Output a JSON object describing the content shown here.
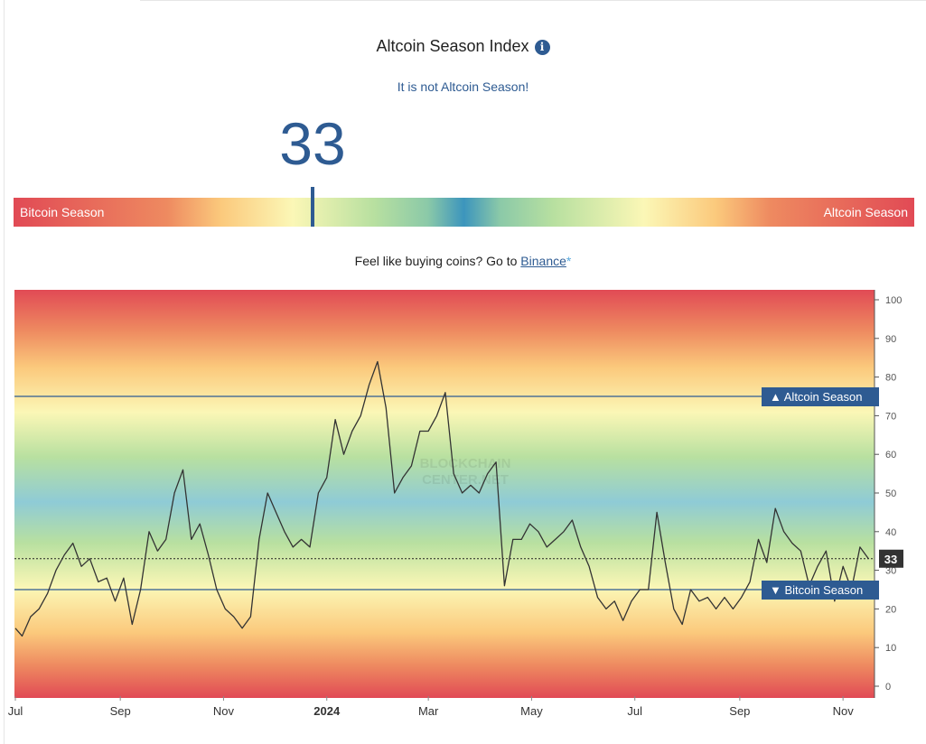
{
  "header": {
    "title": "Altcoin Season Index",
    "info_icon": "info-icon",
    "subtitle": "It is not Altcoin Season!",
    "value": "33"
  },
  "gauge": {
    "left_label": "Bitcoin Season",
    "right_label": "Altcoin Season",
    "value": 33
  },
  "promo": {
    "text": "Feel like buying coins? Go to ",
    "link": "Binance",
    "star": "*"
  },
  "colors": {
    "accent": "#2e5b92",
    "line": "#333333",
    "red": "#e14a55",
    "yellow": "#fbf7b6",
    "blue": "#3c95bd"
  },
  "chart_data": {
    "type": "line",
    "title": "",
    "xlabel": "",
    "ylabel": "",
    "ylim": [
      0,
      100
    ],
    "y_ticks": [
      0,
      10,
      20,
      30,
      40,
      50,
      60,
      70,
      80,
      90,
      100
    ],
    "x_domain": [
      "2023-07-01",
      "2024-11-18"
    ],
    "x_ticks": [
      {
        "date": "2023-07-01",
        "label": "Jul"
      },
      {
        "date": "2023-09-01",
        "label": "Sep"
      },
      {
        "date": "2023-11-01",
        "label": "Nov"
      },
      {
        "date": "2024-01-01",
        "label": "2024"
      },
      {
        "date": "2024-03-01",
        "label": "Mar"
      },
      {
        "date": "2024-05-01",
        "label": "May"
      },
      {
        "date": "2024-07-01",
        "label": "Jul"
      },
      {
        "date": "2024-09-01",
        "label": "Sep"
      },
      {
        "date": "2024-11-01",
        "label": "Nov"
      }
    ],
    "thresholds": [
      {
        "label": "Altcoin Season",
        "value": 75,
        "marker": "▲"
      },
      {
        "label": "Bitcoin Season",
        "value": 25,
        "marker": "▼"
      }
    ],
    "current": {
      "value": 33,
      "label": "33"
    },
    "watermark": "BLOCKCHAIN CENTER.NET",
    "grid": false,
    "legend": "none",
    "series": [
      {
        "x": [
          "2023-07-01",
          "2023-07-05",
          "2023-07-10",
          "2023-07-15",
          "2023-07-20",
          "2023-07-25",
          "2023-07-30",
          "2023-08-04",
          "2023-08-09",
          "2023-08-14",
          "2023-08-19",
          "2023-08-24",
          "2023-08-29",
          "2023-09-03",
          "2023-09-08",
          "2023-09-13",
          "2023-09-18",
          "2023-09-23",
          "2023-09-28",
          "2023-10-03",
          "2023-10-08",
          "2023-10-13",
          "2023-10-18",
          "2023-10-23",
          "2023-10-28",
          "2023-11-02",
          "2023-11-07",
          "2023-11-12",
          "2023-11-17",
          "2023-11-22",
          "2023-11-27",
          "2023-12-02",
          "2023-12-07",
          "2023-12-12",
          "2023-12-17",
          "2023-12-22",
          "2023-12-27",
          "2024-01-01",
          "2024-01-06",
          "2024-01-11",
          "2024-01-16",
          "2024-01-21",
          "2024-01-26",
          "2024-01-31",
          "2024-02-05",
          "2024-02-10",
          "2024-02-15",
          "2024-02-20",
          "2024-02-25",
          "2024-03-01",
          "2024-03-06",
          "2024-03-11",
          "2024-03-16",
          "2024-03-21",
          "2024-03-26",
          "2024-03-31",
          "2024-04-05",
          "2024-04-10",
          "2024-04-15",
          "2024-04-20",
          "2024-04-25",
          "2024-04-30",
          "2024-05-05",
          "2024-05-10",
          "2024-05-15",
          "2024-05-20",
          "2024-05-25",
          "2024-05-30",
          "2024-06-04",
          "2024-06-09",
          "2024-06-14",
          "2024-06-19",
          "2024-06-24",
          "2024-06-29",
          "2024-07-04",
          "2024-07-09",
          "2024-07-14",
          "2024-07-19",
          "2024-07-24",
          "2024-07-29",
          "2024-08-03",
          "2024-08-08",
          "2024-08-13",
          "2024-08-18",
          "2024-08-23",
          "2024-08-28",
          "2024-09-02",
          "2024-09-07",
          "2024-09-12",
          "2024-09-17",
          "2024-09-22",
          "2024-09-27",
          "2024-10-02",
          "2024-10-07",
          "2024-10-12",
          "2024-10-17",
          "2024-10-22",
          "2024-10-27",
          "2024-11-01",
          "2024-11-06",
          "2024-11-11",
          "2024-11-16"
        ],
        "values": [
          15,
          13,
          18,
          20,
          24,
          30,
          34,
          37,
          31,
          33,
          27,
          28,
          22,
          28,
          16,
          25,
          40,
          35,
          38,
          50,
          56,
          38,
          42,
          34,
          25,
          20,
          18,
          15,
          18,
          38,
          50,
          45,
          40,
          36,
          38,
          36,
          50,
          54,
          69,
          60,
          66,
          70,
          78,
          84,
          72,
          50,
          54,
          57,
          66,
          66,
          70,
          76,
          55,
          50,
          52,
          50,
          55,
          58,
          26,
          38,
          38,
          42,
          40,
          36,
          38,
          40,
          43,
          36,
          31,
          23,
          20,
          22,
          17,
          22,
          25,
          25,
          45,
          32,
          20,
          16,
          25,
          22,
          23,
          20,
          23,
          20,
          23,
          27,
          38,
          32,
          46,
          40,
          37,
          35,
          26,
          31,
          35,
          22,
          31,
          25,
          36,
          33
        ]
      }
    ]
  }
}
